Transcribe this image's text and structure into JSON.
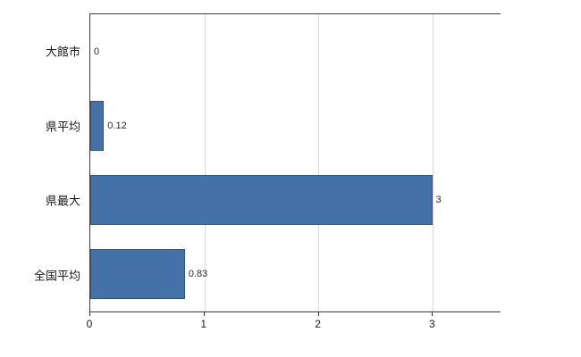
{
  "chart_data": {
    "type": "bar",
    "orientation": "horizontal",
    "title": "",
    "xlabel": "",
    "ylabel": "",
    "categories": [
      "大館市",
      "県平均",
      "県最大",
      "全国平均"
    ],
    "values": [
      0,
      0.12,
      3,
      0.83
    ],
    "value_labels": [
      "0",
      "0.12",
      "3",
      "0.83"
    ],
    "x_tick_labels": [
      "0",
      "1",
      "2",
      "3"
    ],
    "x_tick_values": [
      0,
      1,
      2,
      3
    ],
    "xlim": [
      0,
      3.6
    ],
    "grid": true,
    "legend": false,
    "bar_color": "#4472a8",
    "bar_border_color": "#2e578c",
    "gridline_color": "#d9d9d9",
    "axis_color": "#3a3a3a",
    "background_color": "#ffffff"
  }
}
